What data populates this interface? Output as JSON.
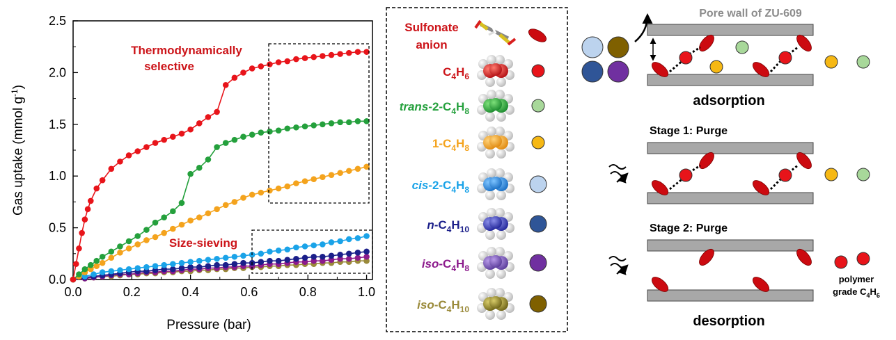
{
  "chart_data": {
    "type": "line",
    "xlabel": "Pressure (bar)",
    "ylabel_main": "Gas uptake (mmol g",
    "ylabel_sup": "-1",
    "ylabel_tail": ")",
    "xlim": [
      0,
      1.02
    ],
    "ylim": [
      0,
      2.5
    ],
    "x_ticks": [
      "0.0",
      "0.2",
      "0.4",
      "0.6",
      "0.8",
      "1.0"
    ],
    "y_ticks": [
      "0.0",
      "0.5",
      "1.0",
      "1.5",
      "2.0",
      "2.5"
    ],
    "annotations": {
      "thermo_line1": "Thermodynamically",
      "thermo_line2": "selective",
      "size_sieving": "Size-sieving"
    },
    "series": [
      {
        "color": "#e8141a",
        "x": [
          0,
          0.01,
          0.02,
          0.03,
          0.04,
          0.05,
          0.06,
          0.08,
          0.1,
          0.13,
          0.16,
          0.19,
          0.22,
          0.25,
          0.28,
          0.31,
          0.34,
          0.37,
          0.4,
          0.43,
          0.46,
          0.49,
          0.52,
          0.55,
          0.58,
          0.61,
          0.64,
          0.67,
          0.7,
          0.73,
          0.76,
          0.79,
          0.82,
          0.85,
          0.88,
          0.91,
          0.94,
          0.97,
          1.0
        ],
        "y": [
          0,
          0.15,
          0.3,
          0.45,
          0.58,
          0.68,
          0.76,
          0.88,
          0.96,
          1.07,
          1.14,
          1.2,
          1.24,
          1.28,
          1.32,
          1.35,
          1.38,
          1.41,
          1.45,
          1.51,
          1.57,
          1.62,
          1.88,
          1.95,
          2.0,
          2.04,
          2.06,
          2.08,
          2.1,
          2.11,
          2.13,
          2.14,
          2.15,
          2.16,
          2.17,
          2.18,
          2.19,
          2.2,
          2.2
        ]
      },
      {
        "color": "#24a03c",
        "x": [
          0,
          0.02,
          0.04,
          0.06,
          0.08,
          0.1,
          0.13,
          0.16,
          0.19,
          0.22,
          0.25,
          0.28,
          0.31,
          0.34,
          0.37,
          0.4,
          0.43,
          0.46,
          0.49,
          0.52,
          0.55,
          0.58,
          0.61,
          0.64,
          0.67,
          0.7,
          0.73,
          0.76,
          0.79,
          0.82,
          0.85,
          0.88,
          0.91,
          0.94,
          0.97,
          1.0
        ],
        "y": [
          0,
          0.05,
          0.1,
          0.14,
          0.18,
          0.22,
          0.27,
          0.32,
          0.37,
          0.42,
          0.48,
          0.55,
          0.6,
          0.66,
          0.74,
          1.02,
          1.08,
          1.16,
          1.28,
          1.32,
          1.35,
          1.38,
          1.4,
          1.42,
          1.43,
          1.44,
          1.46,
          1.47,
          1.48,
          1.49,
          1.5,
          1.51,
          1.52,
          1.52,
          1.53,
          1.53
        ]
      },
      {
        "color": "#f4a31d",
        "x": [
          0,
          0.02,
          0.04,
          0.06,
          0.08,
          0.1,
          0.13,
          0.16,
          0.19,
          0.22,
          0.25,
          0.28,
          0.31,
          0.34,
          0.37,
          0.4,
          0.43,
          0.46,
          0.49,
          0.52,
          0.55,
          0.58,
          0.61,
          0.64,
          0.67,
          0.7,
          0.73,
          0.76,
          0.79,
          0.82,
          0.85,
          0.88,
          0.91,
          0.94,
          0.97,
          1.0
        ],
        "y": [
          0,
          0.03,
          0.07,
          0.1,
          0.13,
          0.16,
          0.21,
          0.26,
          0.3,
          0.34,
          0.38,
          0.41,
          0.45,
          0.49,
          0.53,
          0.57,
          0.6,
          0.64,
          0.68,
          0.72,
          0.75,
          0.79,
          0.82,
          0.84,
          0.86,
          0.88,
          0.9,
          0.93,
          0.95,
          0.97,
          0.99,
          1.01,
          1.03,
          1.05,
          1.07,
          1.09
        ]
      },
      {
        "color": "#1aa3e8",
        "x": [
          0,
          0.04,
          0.07,
          0.1,
          0.13,
          0.16,
          0.19,
          0.22,
          0.25,
          0.28,
          0.31,
          0.34,
          0.37,
          0.4,
          0.43,
          0.46,
          0.49,
          0.52,
          0.55,
          0.58,
          0.61,
          0.64,
          0.67,
          0.7,
          0.73,
          0.76,
          0.79,
          0.82,
          0.85,
          0.88,
          0.91,
          0.94,
          0.97,
          1.0
        ],
        "y": [
          0,
          0.03,
          0.05,
          0.07,
          0.08,
          0.09,
          0.1,
          0.11,
          0.12,
          0.13,
          0.14,
          0.15,
          0.16,
          0.17,
          0.18,
          0.19,
          0.2,
          0.21,
          0.22,
          0.23,
          0.24,
          0.25,
          0.27,
          0.28,
          0.29,
          0.31,
          0.32,
          0.33,
          0.34,
          0.36,
          0.37,
          0.39,
          0.4,
          0.42
        ]
      },
      {
        "color": "#1b1f8a",
        "x": [
          0,
          0.04,
          0.07,
          0.1,
          0.13,
          0.16,
          0.19,
          0.22,
          0.25,
          0.28,
          0.31,
          0.34,
          0.37,
          0.4,
          0.43,
          0.46,
          0.49,
          0.52,
          0.55,
          0.58,
          0.61,
          0.64,
          0.67,
          0.7,
          0.73,
          0.76,
          0.79,
          0.82,
          0.85,
          0.88,
          0.91,
          0.94,
          0.97,
          1.0
        ],
        "y": [
          0,
          0.02,
          0.03,
          0.04,
          0.05,
          0.06,
          0.07,
          0.08,
          0.08,
          0.09,
          0.1,
          0.1,
          0.11,
          0.12,
          0.12,
          0.13,
          0.14,
          0.14,
          0.15,
          0.16,
          0.16,
          0.17,
          0.18,
          0.18,
          0.19,
          0.2,
          0.21,
          0.22,
          0.22,
          0.23,
          0.24,
          0.25,
          0.26,
          0.27
        ]
      },
      {
        "color": "#8c1a8c",
        "x": [
          0,
          0.04,
          0.07,
          0.1,
          0.13,
          0.16,
          0.19,
          0.22,
          0.25,
          0.28,
          0.31,
          0.34,
          0.37,
          0.4,
          0.43,
          0.46,
          0.49,
          0.52,
          0.55,
          0.58,
          0.61,
          0.64,
          0.67,
          0.7,
          0.73,
          0.76,
          0.79,
          0.82,
          0.85,
          0.88,
          0.91,
          0.94,
          0.97,
          1.0
        ],
        "y": [
          0,
          0.01,
          0.02,
          0.03,
          0.04,
          0.05,
          0.05,
          0.06,
          0.07,
          0.07,
          0.08,
          0.08,
          0.09,
          0.1,
          0.1,
          0.11,
          0.11,
          0.12,
          0.12,
          0.13,
          0.13,
          0.14,
          0.15,
          0.15,
          0.16,
          0.17,
          0.17,
          0.18,
          0.18,
          0.19,
          0.2,
          0.2,
          0.21,
          0.22
        ]
      },
      {
        "color": "#9a8a3a",
        "x": [
          0,
          0.04,
          0.07,
          0.1,
          0.13,
          0.16,
          0.19,
          0.22,
          0.25,
          0.28,
          0.31,
          0.34,
          0.37,
          0.4,
          0.43,
          0.46,
          0.49,
          0.52,
          0.55,
          0.58,
          0.61,
          0.64,
          0.67,
          0.7,
          0.73,
          0.76,
          0.79,
          0.82,
          0.85,
          0.88,
          0.91,
          0.94,
          0.97,
          1.0
        ],
        "y": [
          0,
          0.01,
          0.02,
          0.03,
          0.03,
          0.04,
          0.05,
          0.05,
          0.06,
          0.06,
          0.07,
          0.07,
          0.08,
          0.08,
          0.09,
          0.09,
          0.1,
          0.1,
          0.11,
          0.11,
          0.12,
          0.12,
          0.13,
          0.13,
          0.14,
          0.14,
          0.15,
          0.15,
          0.16,
          0.16,
          0.17,
          0.17,
          0.18,
          0.18
        ]
      }
    ]
  },
  "legend": {
    "sulfonate_line1": "Sulfonate",
    "sulfonate_line2": "anion",
    "items": [
      {
        "pre": "",
        "formula": "C",
        "sub1": "4",
        "mid": "H",
        "sub2": "6",
        "label_color": "#cc1419",
        "dot_color": "#e8141a"
      },
      {
        "pre": "trans",
        "formula": "-2-C",
        "sub1": "4",
        "mid": "H",
        "sub2": "8",
        "label_color": "#24a03c",
        "dot_color": "#a8d89a"
      },
      {
        "pre": "",
        "formula": "1-C",
        "sub1": "4",
        "mid": "H",
        "sub2": "8",
        "label_color": "#f4a31d",
        "dot_color": "#f6b814"
      },
      {
        "pre": "cis",
        "formula": "-2-C",
        "sub1": "4",
        "mid": "H",
        "sub2": "8",
        "label_color": "#1aa3e8",
        "dot_color": "#bcd3ee"
      },
      {
        "pre": "n",
        "formula": "-C",
        "sub1": "4",
        "mid": "H",
        "sub2": "10",
        "label_color": "#1b1f8a",
        "dot_color": "#2f5597"
      },
      {
        "pre": "iso",
        "formula": "-C",
        "sub1": "4",
        "mid": "H",
        "sub2": "8",
        "label_color": "#8c1a8c",
        "dot_color": "#7030a0"
      },
      {
        "pre": "iso",
        "formula": "-C",
        "sub1": "4",
        "mid": "H",
        "sub2": "10",
        "label_color": "#9a8a3a",
        "dot_color": "#7f6000"
      }
    ]
  },
  "schematic": {
    "pore_wall": "Pore wall of ZU-609",
    "adsorption": "adsorption",
    "stage1": "Stage 1: Purge",
    "stage2": "Stage 2: Purge",
    "desorption": "desorption",
    "polymer_line1": "polymer",
    "polymer_line2": "grade C",
    "polymer_sub1": "4",
    "polymer_mid": "H",
    "polymer_sub2": "6"
  }
}
